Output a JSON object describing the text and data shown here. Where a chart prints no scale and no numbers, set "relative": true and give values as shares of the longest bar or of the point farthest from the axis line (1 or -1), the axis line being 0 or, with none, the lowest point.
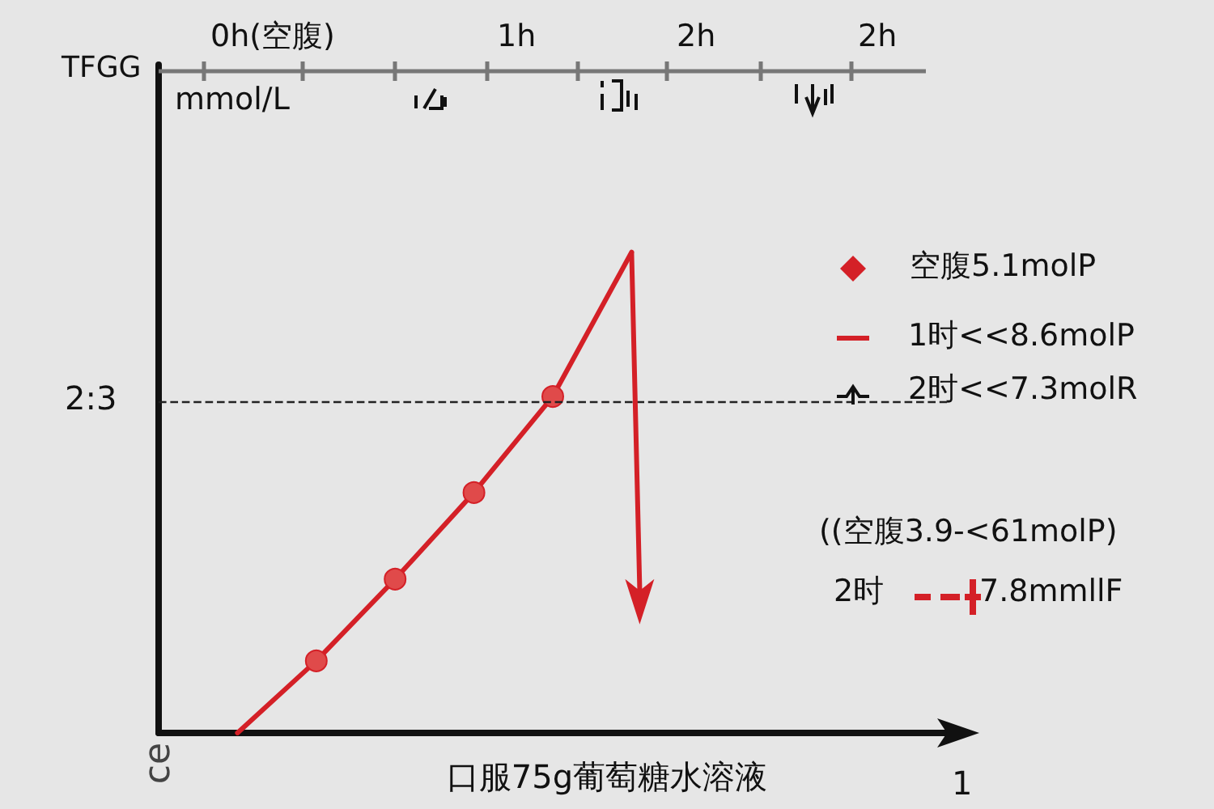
{
  "chart_data": {
    "type": "line",
    "title": "口服75g葡萄糖水溶液",
    "ylabel": "ce",
    "relative": true,
    "categories": [
      null,
      null,
      null,
      null,
      null,
      null
    ],
    "series": [
      {
        "color": "#d42027",
        "values": [
          0,
          0.15,
          0.32,
          0.5,
          0.7,
          1
        ]
      }
    ],
    "marker": "circle",
    "line_style": "solid",
    "grid": false,
    "ref_lines": [
      {
        "axis": "y",
        "value": 0.69,
        "line_style": "dashed",
        "color": "#222222"
      }
    ],
    "annotations": [
      "2:3",
      "1",
      "TFGG",
      "mmol/L",
      "0h(空腹)",
      "1h",
      "2h",
      "2h",
      "空腹5.1molP",
      "1时<<8.6molP",
      "2时<<7.3molR",
      "((空腹3.9-<61molP)",
      "2时",
      "7.8mmllF"
    ]
  }
}
